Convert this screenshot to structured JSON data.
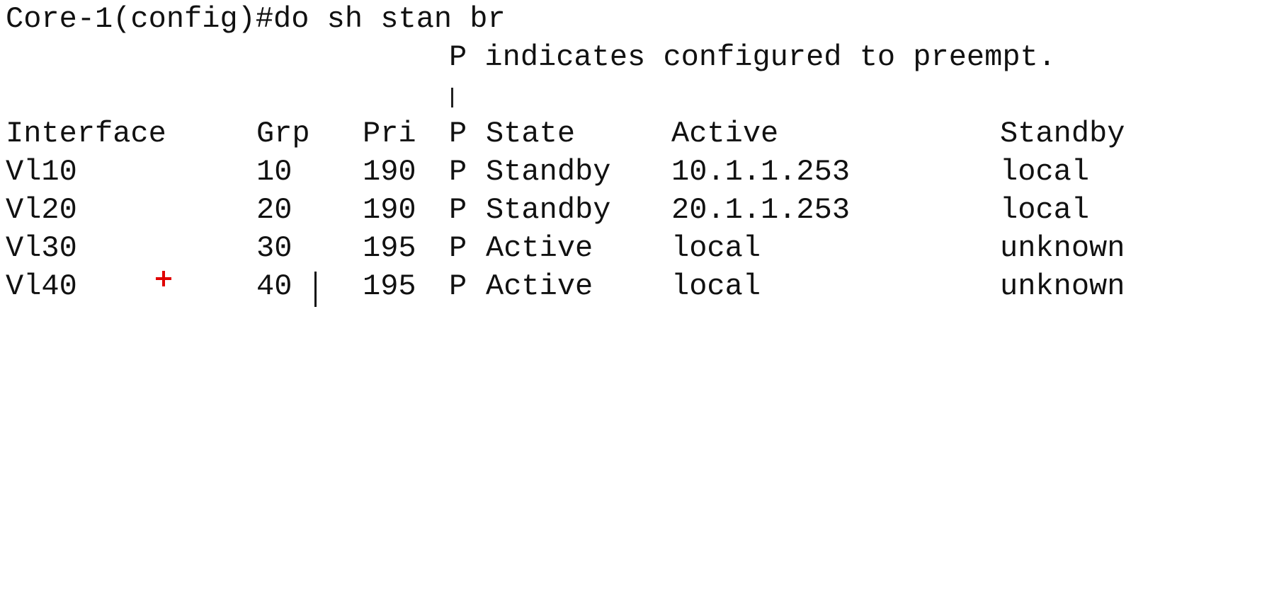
{
  "terminal": {
    "command_line": "Core-1(config)#do sh stan br",
    "preempt_note": "P indicates configured to preempt.",
    "headers": {
      "interface": "Interface",
      "grp": "Grp",
      "pri": "Pri",
      "p": "P",
      "state": "State",
      "active": "Active",
      "standby": "Standby"
    },
    "rows": [
      {
        "interface": "Vl10",
        "grp": "10",
        "pri": "190",
        "p": "P",
        "state": "Standby",
        "active": "10.1.1.253",
        "standby": "local"
      },
      {
        "interface": "Vl20",
        "grp": "20",
        "pri": "190",
        "p": "P",
        "state": "Standby",
        "active": "20.1.1.253",
        "standby": "local"
      },
      {
        "interface": "Vl30",
        "grp": "30",
        "pri": "195",
        "p": "P",
        "state": "Active",
        "active": "local",
        "standby": "unknown"
      },
      {
        "interface": "Vl40",
        "grp": "40",
        "pri": "195",
        "p": "P",
        "state": "Active",
        "active": "local",
        "standby": "unknown"
      }
    ],
    "colors": {
      "background": "#ffffff",
      "text": "#111111",
      "cursor_marker": "#e00000"
    },
    "icons": {
      "pointer": "vertical-bar-pointer",
      "mouse_cursor": "plus-crosshair-icon",
      "text_cursor": "text-cursor-bar"
    }
  }
}
